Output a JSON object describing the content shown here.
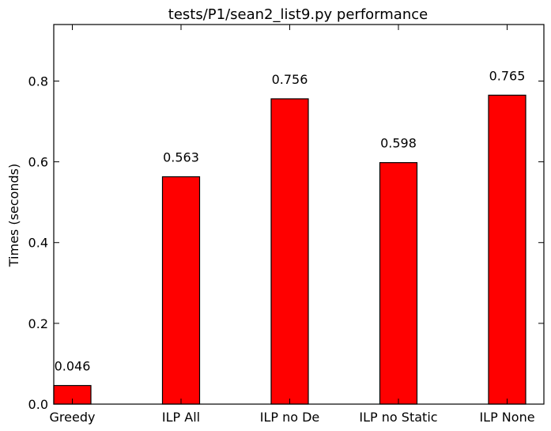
{
  "chart_data": {
    "type": "bar",
    "title": "tests/P1/sean2_list9.py performance",
    "xlabel": "",
    "ylabel": "Times (seconds)",
    "categories": [
      "Greedy",
      "ILP All",
      "ILP no De",
      "ILP no Static",
      "ILP None"
    ],
    "values": [
      0.046,
      0.563,
      0.756,
      0.598,
      0.765
    ],
    "value_labels": [
      "0.046",
      "0.563",
      "0.756",
      "0.598",
      "0.765"
    ],
    "ylim": [
      0.0,
      0.94
    ],
    "yticks": [
      0.0,
      0.2,
      0.4,
      0.6,
      0.8
    ],
    "ytick_labels": [
      "0.0",
      "0.2",
      "0.4",
      "0.6",
      "0.8"
    ],
    "bar_color": "#ff0000",
    "grid": false,
    "legend": "none"
  }
}
